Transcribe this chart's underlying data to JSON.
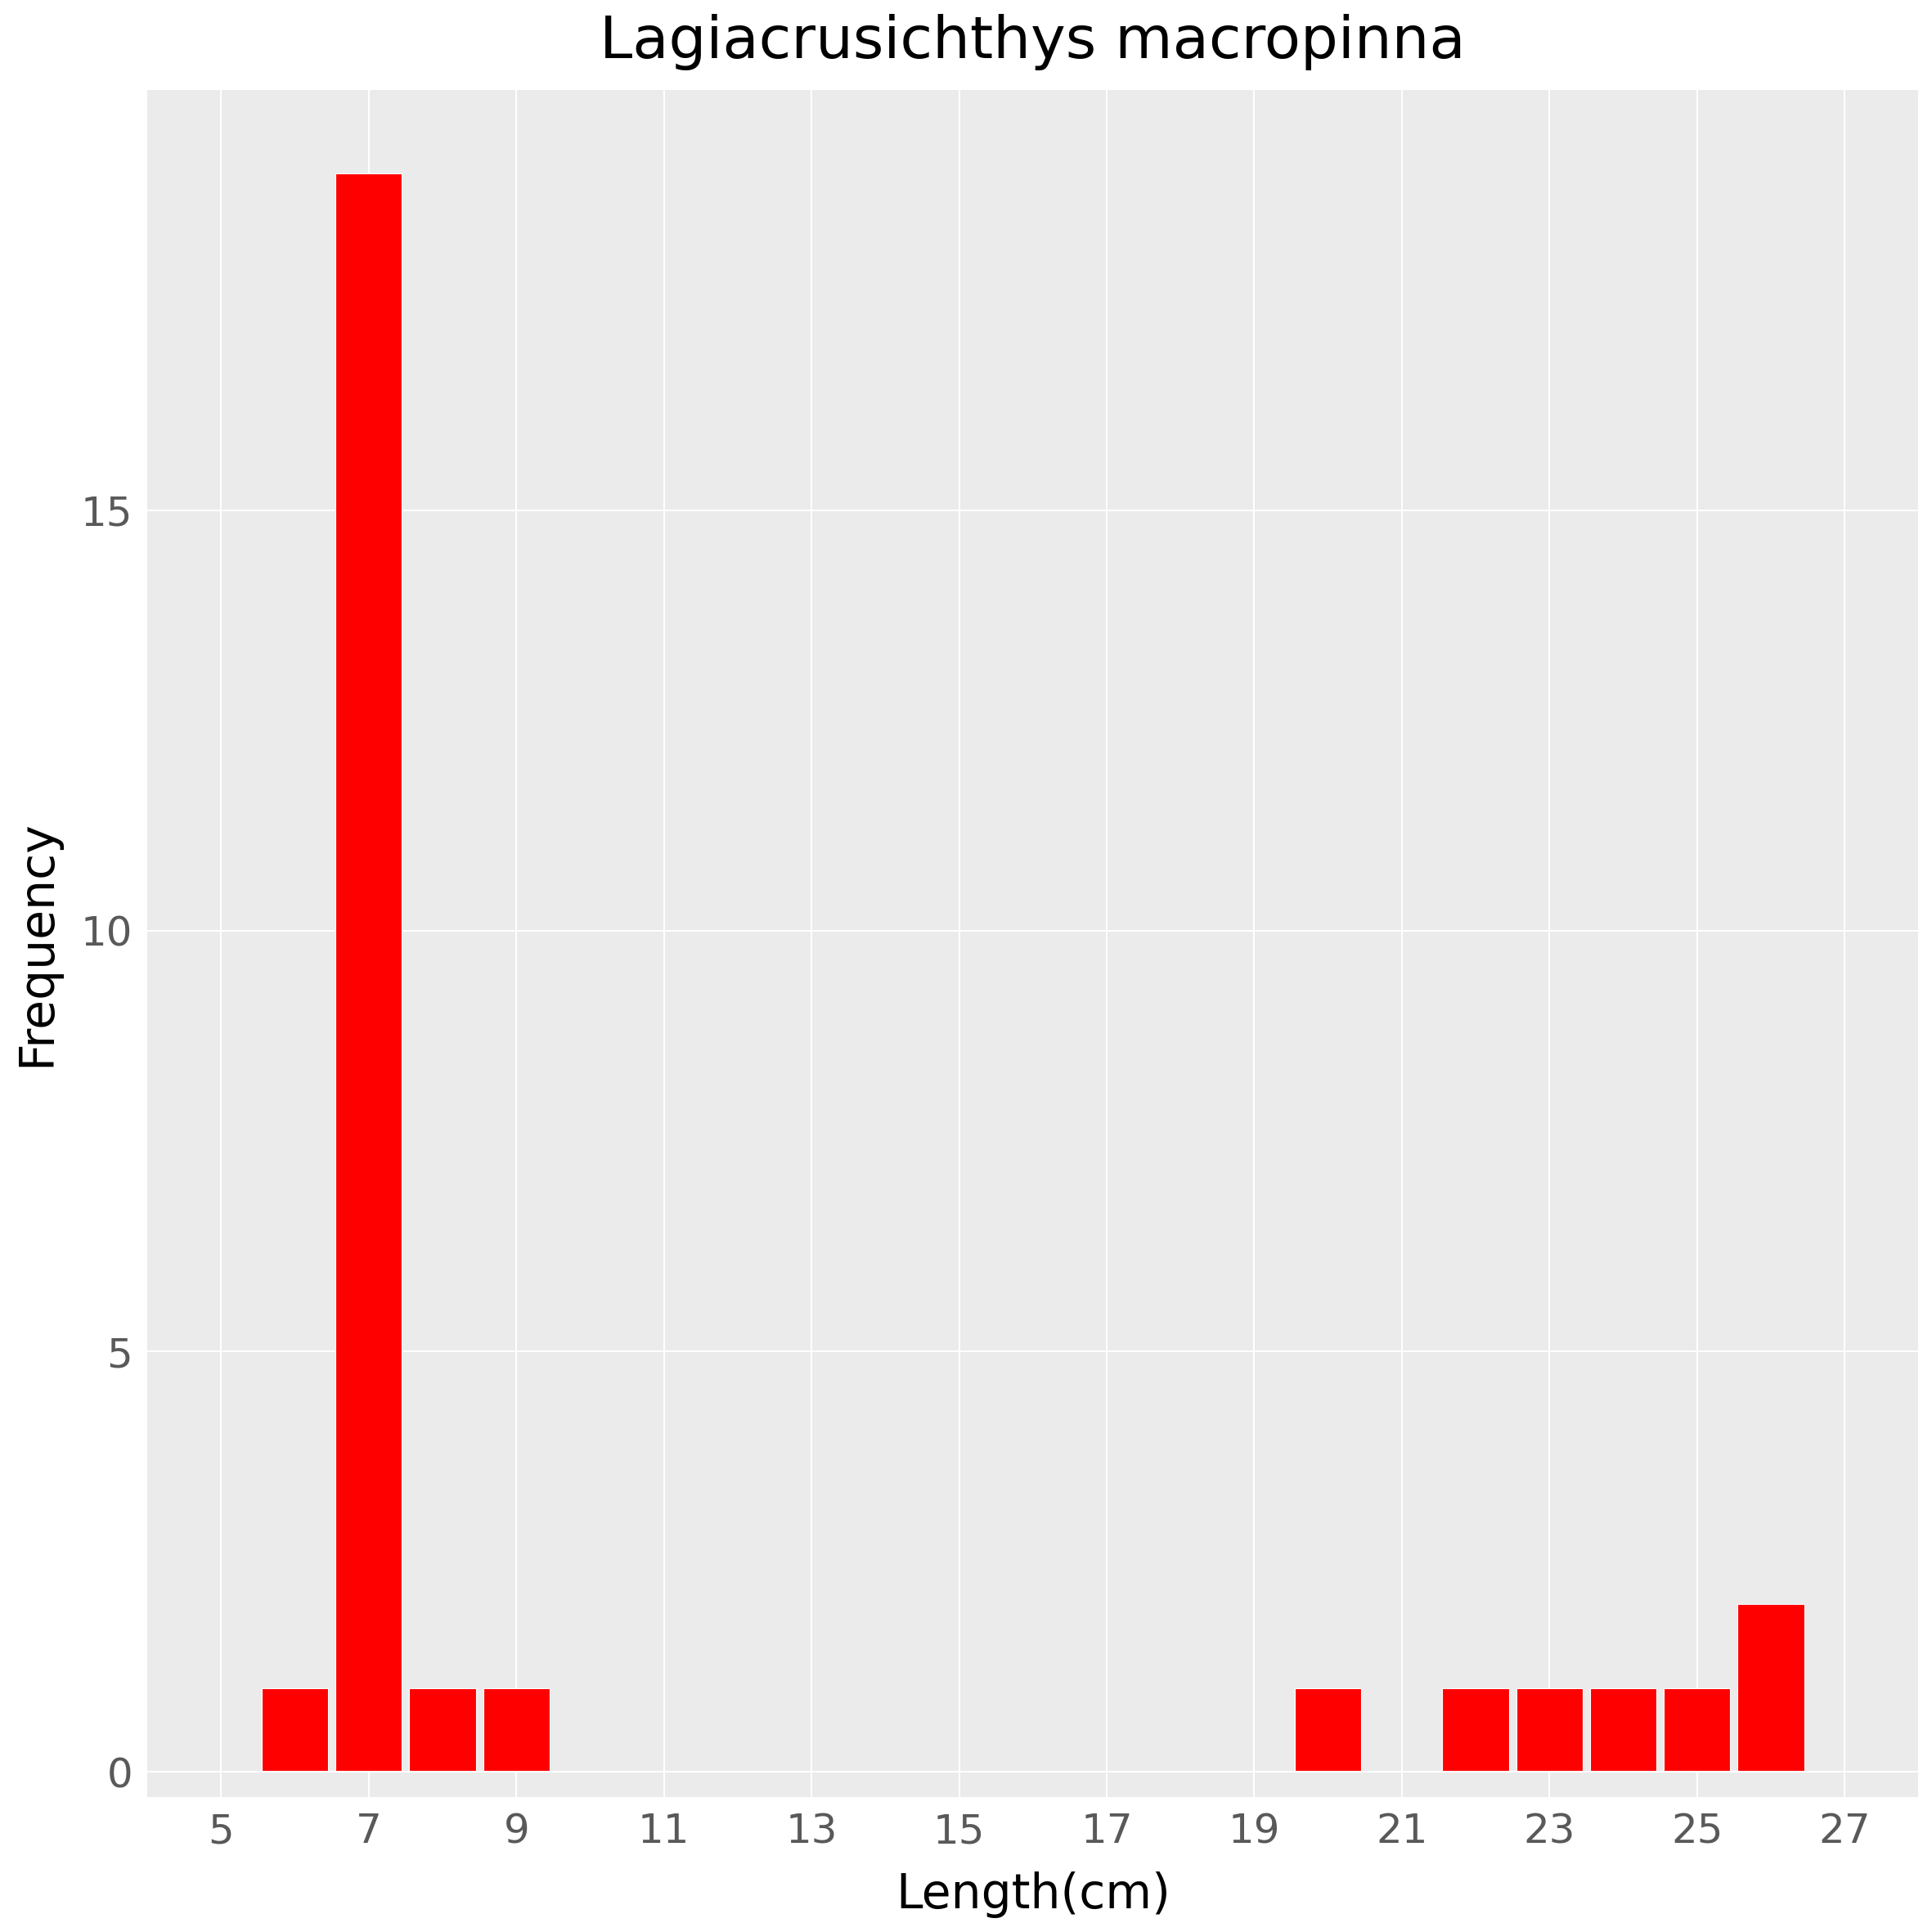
{
  "title": "Lagiacrusichthys macropinna",
  "xlabel": "Length(cm)",
  "ylabel": "Frequency",
  "bar_color": "#FF0000",
  "background_color": "#EBEBEB",
  "bar_centers": [
    6,
    7,
    8,
    9,
    20,
    22,
    23,
    24,
    25,
    26
  ],
  "frequencies": [
    1,
    19,
    1,
    1,
    1,
    1,
    1,
    1,
    1,
    2
  ],
  "bar_width": 0.9,
  "xlim": [
    4.0,
    28.0
  ],
  "ylim": [
    -0.3,
    20.0
  ],
  "xticks": [
    5,
    7,
    9,
    11,
    13,
    15,
    17,
    19,
    21,
    23,
    25,
    27
  ],
  "yticks": [
    0,
    5,
    10,
    15
  ],
  "title_fontsize": 52,
  "axis_label_fontsize": 42,
  "tick_fontsize": 36,
  "grid_color": "#FFFFFF",
  "tick_color": "#595959",
  "figure_size_inches": 23.62,
  "dpi": 100
}
